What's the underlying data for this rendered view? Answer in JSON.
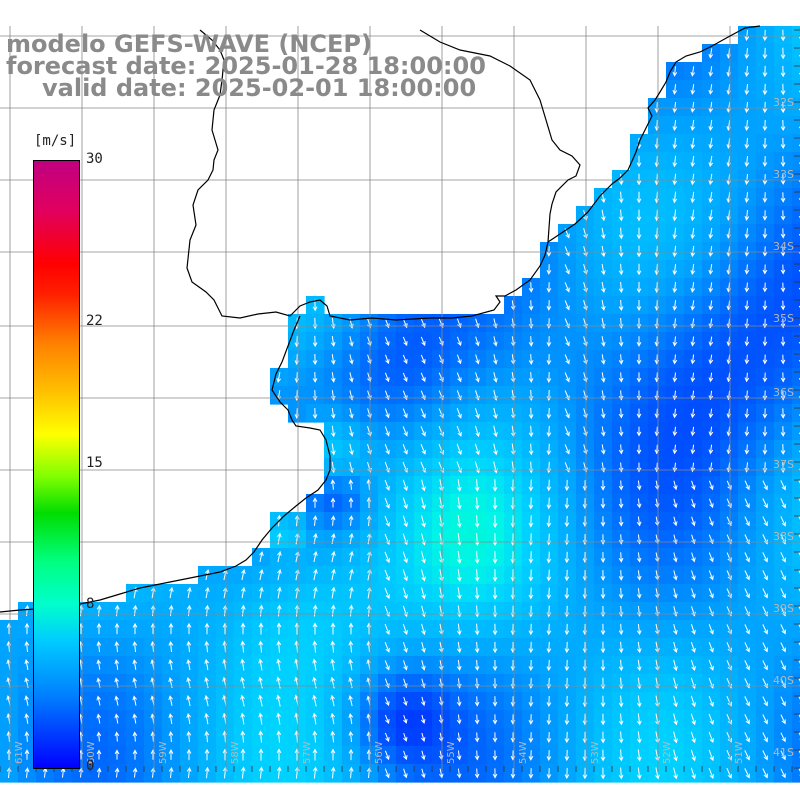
{
  "titles": {
    "line1": "modelo GEFS-WAVE (NCEP)",
    "line2": "forecast date: 2025-01-28 18:00:00",
    "line3": "valid date: 2025-02-01 18:00:00"
  },
  "colorbar": {
    "unit": "[m/s]",
    "ticks": [
      {
        "label": "30",
        "value": 30
      },
      {
        "label": "22",
        "value": 22
      },
      {
        "label": "15",
        "value": 15
      },
      {
        "label": "8",
        "value": 8
      },
      {
        "label": "0",
        "value": 0
      }
    ]
  },
  "grid": {
    "lat_labels": [
      "32S",
      "33S",
      "34S",
      "35S",
      "36S",
      "37S",
      "38S",
      "39S",
      "40S",
      "41S"
    ],
    "lon_labels": [
      "61W",
      "60W",
      "59W",
      "58W",
      "57W",
      "56W",
      "55W",
      "54W",
      "53W",
      "52W",
      "51W"
    ]
  },
  "colors": {
    "land": "#ffffff",
    "grid": "#888888",
    "coast": "#000000",
    "arrows": "#ffffff"
  }
}
